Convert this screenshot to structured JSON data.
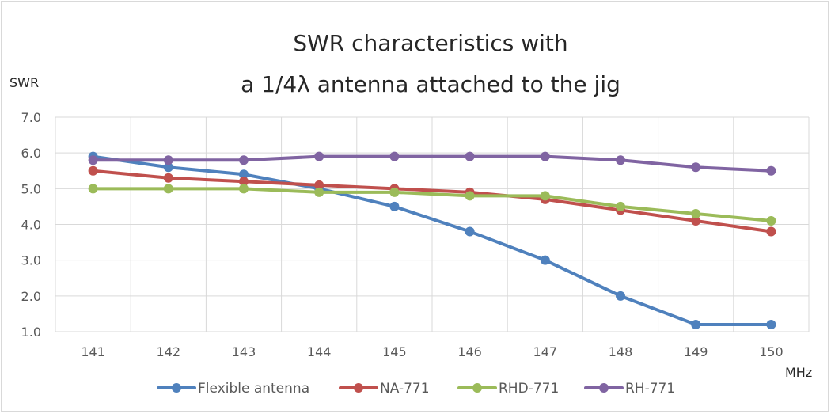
{
  "chart_data": {
    "type": "line",
    "title_line1": "SWR characteristics with",
    "title_line2": "a 1/4λ antenna attached to the jig",
    "ylabel": "SWR",
    "xlabel": "MHz",
    "x": [
      141,
      142,
      143,
      144,
      145,
      146,
      147,
      148,
      149,
      150
    ],
    "x_tick_labels": [
      "141",
      "142",
      "143",
      "144",
      "145",
      "146",
      "147",
      "148",
      "149",
      "150"
    ],
    "y_tick_labels": [
      "7.0",
      "6.0",
      "5.0",
      "4.0",
      "3.0",
      "2.0",
      "1.0"
    ],
    "y_ticks": [
      7,
      6,
      5,
      4,
      3,
      2,
      1
    ],
    "ylim": [
      1.0,
      7.0
    ],
    "grid": true,
    "legend_position": "bottom",
    "series": [
      {
        "name": "Flexible antenna",
        "color": "#4f81bd",
        "values": [
          5.9,
          5.6,
          5.4,
          5.0,
          4.5,
          3.8,
          3.0,
          2.0,
          1.2,
          1.2
        ]
      },
      {
        "name": "NA-771",
        "color": "#c0504d",
        "values": [
          5.5,
          5.3,
          5.2,
          5.1,
          5.0,
          4.9,
          4.7,
          4.4,
          4.1,
          3.8
        ]
      },
      {
        "name": "RHD-771",
        "color": "#9bbb59",
        "values": [
          5.0,
          5.0,
          5.0,
          4.9,
          4.9,
          4.8,
          4.8,
          4.5,
          4.3,
          4.1
        ]
      },
      {
        "name": "RH-771",
        "color": "#8064a2",
        "values": [
          5.8,
          5.8,
          5.8,
          5.9,
          5.9,
          5.9,
          5.9,
          5.8,
          5.6,
          5.5
        ]
      }
    ]
  }
}
